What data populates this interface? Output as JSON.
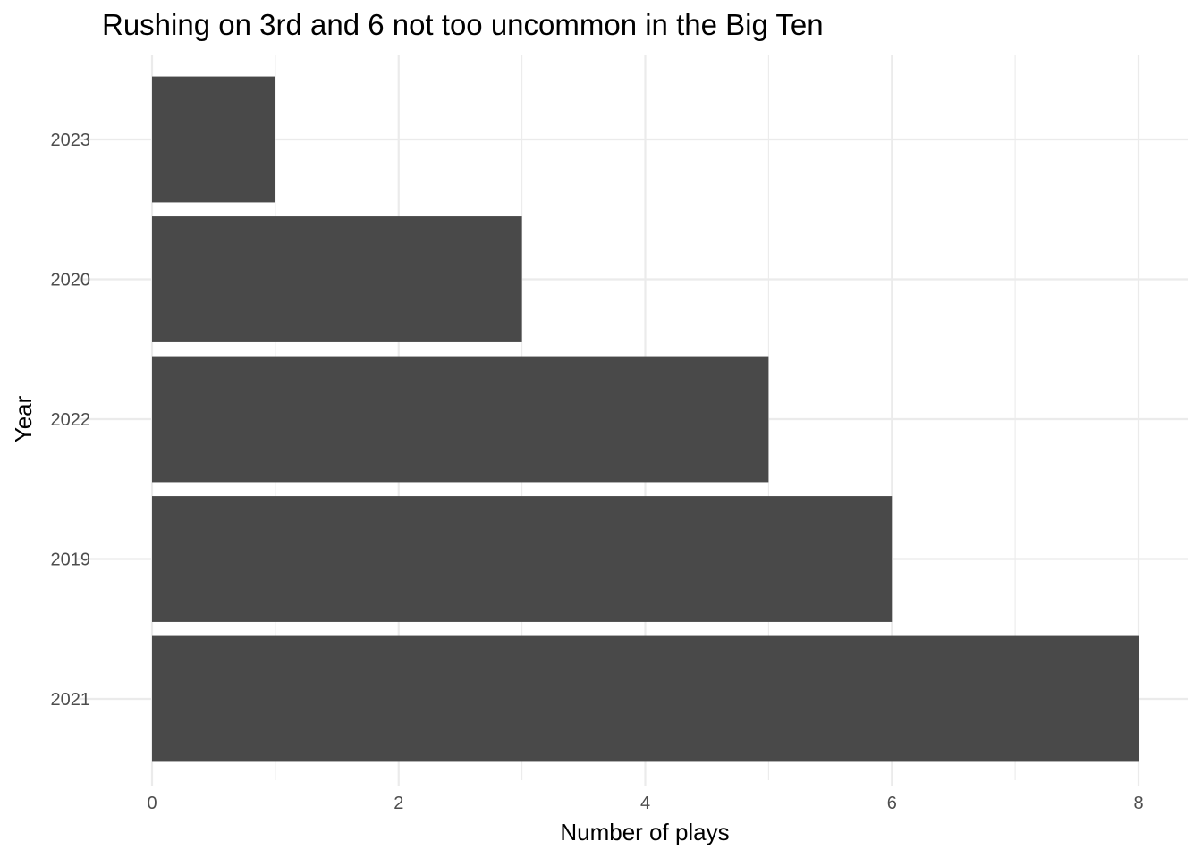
{
  "chart_data": {
    "type": "bar",
    "orientation": "horizontal",
    "title": "Rushing on 3rd and 6 not too uncommon in the Big Ten",
    "xlabel": "Number of plays",
    "ylabel": "Year",
    "categories": [
      "2023",
      "2020",
      "2022",
      "2019",
      "2021"
    ],
    "values": [
      1,
      3,
      5,
      6,
      8
    ],
    "xlim": [
      0,
      8
    ],
    "x_ticks": [
      "0",
      "2",
      "4",
      "6",
      "8"
    ],
    "grid": true,
    "legend": "none",
    "bar_color": "#494949",
    "grid_color": "#ebebeb",
    "background_color": "#ffffff"
  }
}
